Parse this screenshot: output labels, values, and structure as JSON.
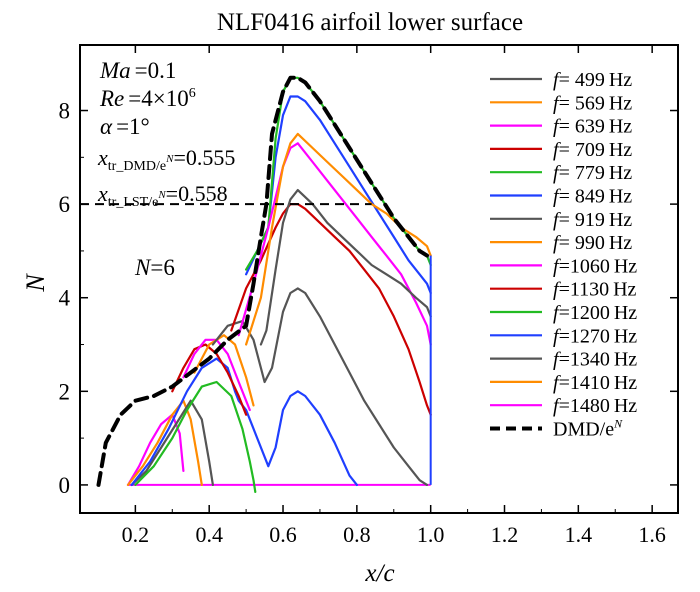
{
  "chart_data": {
    "type": "line",
    "title": "NLF0416 airfoil lower surface",
    "xlabel": "x/c",
    "ylabel": "N",
    "xlim": [
      0.05,
      1.67
    ],
    "ylim": [
      -0.6,
      9.4
    ],
    "xticks": [
      "0.2",
      "0.4",
      "0.6",
      "0.8",
      "1.0",
      "1.2",
      "1.4",
      "1.6"
    ],
    "xtick_values": [
      0.2,
      0.4,
      0.6,
      0.8,
      1.0,
      1.2,
      1.4,
      1.6
    ],
    "yticks": [
      "0",
      "2",
      "4",
      "6",
      "8"
    ],
    "ytick_values": [
      0,
      2,
      4,
      6,
      8
    ],
    "grid": false,
    "legend_position": "top-right",
    "annotations": {
      "ma_label": "Ma",
      "ma_value": "=0.1",
      "re_label": "Re",
      "re_value": "=4×10",
      "re_exp": "6",
      "alpha_label": "α",
      "alpha_value": "=1°",
      "xtr_dmd_sym": "x",
      "xtr_dmd_sub": "tr_DMD/e",
      "xtr_dmd_subexp": "N",
      "xtr_dmd_value": "=0.555",
      "xtr_lst_sym": "x",
      "xtr_lst_sub": "tr_LST/e",
      "xtr_lst_subexp": "N",
      "xtr_lst_value": "=0.558",
      "n_label": "N",
      "n_value": "=6",
      "threshold_value": 6
    },
    "series": [
      {
        "name": "f= 499 Hz",
        "f_label": "f",
        "f_value": "= 499",
        "unit": "Hz",
        "color": "#555555",
        "x": [
          0.54,
          0.555,
          0.58,
          0.6,
          0.62,
          0.64,
          0.68,
          0.72,
          0.76,
          0.8,
          0.84,
          0.88,
          0.92,
          0.96,
          0.99,
          1.0
        ],
        "y": [
          3.0,
          3.3,
          4.6,
          5.6,
          6.1,
          6.3,
          6.0,
          5.6,
          5.3,
          5.0,
          4.7,
          4.5,
          4.3,
          4.0,
          3.8,
          3.6
        ]
      },
      {
        "name": "f= 569 Hz",
        "f_label": "f",
        "f_value": "= 569",
        "unit": "Hz",
        "color": "#FF8C00",
        "x": [
          0.5,
          0.54,
          0.57,
          0.6,
          0.62,
          0.64,
          0.68,
          0.72,
          0.76,
          0.8,
          0.84,
          0.88,
          0.92,
          0.96,
          0.99,
          1.0
        ],
        "y": [
          3.0,
          4.0,
          5.5,
          6.8,
          7.3,
          7.5,
          7.2,
          6.9,
          6.6,
          6.3,
          6.0,
          5.8,
          5.5,
          5.3,
          5.1,
          4.9
        ]
      },
      {
        "name": "f= 639 Hz",
        "f_label": "f",
        "f_value": "= 639",
        "unit": "Hz",
        "color": "#FF00FF",
        "x": [
          0.48,
          0.52,
          0.56,
          0.6,
          0.62,
          0.64,
          0.68,
          0.72,
          0.76,
          0.8,
          0.84,
          0.88,
          0.92,
          0.96,
          0.99,
          1.0
        ],
        "y": [
          3.2,
          4.3,
          5.5,
          6.8,
          7.2,
          7.3,
          6.9,
          6.5,
          6.1,
          5.7,
          5.3,
          4.9,
          4.5,
          3.9,
          3.4,
          3.0
        ]
      },
      {
        "name": "f= 709 Hz",
        "f_label": "f",
        "f_value": "= 709",
        "unit": "Hz",
        "color": "#CC0000",
        "x": [
          0.46,
          0.5,
          0.54,
          0.58,
          0.6,
          0.62,
          0.64,
          0.66,
          0.7,
          0.74,
          0.78,
          0.82,
          0.86,
          0.9,
          0.94,
          0.97,
          0.99,
          1.0
        ],
        "y": [
          3.3,
          4.2,
          4.8,
          5.5,
          5.8,
          6.0,
          6.0,
          5.9,
          5.6,
          5.3,
          5.0,
          4.6,
          4.2,
          3.6,
          2.9,
          2.2,
          1.7,
          1.5
        ]
      },
      {
        "name": "f= 779 Hz",
        "f_label": "f",
        "f_value": "= 779",
        "unit": "Hz",
        "color": "#22BB22",
        "x": [
          0.5,
          0.53,
          0.56,
          0.58,
          0.6,
          0.62,
          0.64,
          0.66,
          0.7,
          0.74,
          0.78,
          0.82,
          0.86,
          0.9,
          0.94,
          0.97,
          0.99,
          1.0
        ],
        "y": [
          4.6,
          5.0,
          5.5,
          7.4,
          8.4,
          8.7,
          8.7,
          8.6,
          8.2,
          7.7,
          7.2,
          6.7,
          6.2,
          5.7,
          5.3,
          5.0,
          4.9,
          4.7
        ]
      },
      {
        "name": "f= 849 Hz",
        "f_label": "f",
        "f_value": "= 849",
        "unit": "Hz",
        "color": "#1F3FFF",
        "x": [
          0.5,
          0.53,
          0.56,
          0.58,
          0.6,
          0.62,
          0.64,
          0.66,
          0.7,
          0.74,
          0.78,
          0.82,
          0.86,
          0.9,
          0.94,
          0.97,
          0.99,
          1.0
        ],
        "y": [
          4.5,
          5.0,
          5.5,
          7.0,
          7.9,
          8.3,
          8.3,
          8.2,
          7.8,
          7.3,
          6.8,
          6.3,
          5.8,
          5.3,
          4.8,
          4.5,
          4.3,
          4.1
        ]
      },
      {
        "name": "f= 919 Hz",
        "f_label": "f",
        "f_value": "= 919",
        "unit": "Hz",
        "color": "#555555",
        "x": [
          0.41,
          0.45,
          0.49,
          0.52,
          0.55,
          0.57,
          0.6,
          0.62,
          0.64,
          0.66,
          0.7,
          0.74,
          0.78,
          0.82,
          0.86,
          0.9,
          0.94,
          0.97,
          0.99
        ],
        "y": [
          3.0,
          3.4,
          3.5,
          3.1,
          2.2,
          2.5,
          3.7,
          4.1,
          4.2,
          4.1,
          3.6,
          3.0,
          2.4,
          1.8,
          1.3,
          0.8,
          0.4,
          0.1,
          0.0
        ]
      },
      {
        "name": "f= 990 Hz",
        "f_label": "f",
        "f_value": "= 990",
        "unit": "Hz",
        "color": "#FF8C00",
        "x": [
          0.36,
          0.4,
          0.44,
          0.47,
          0.5,
          0.52
        ],
        "y": [
          2.4,
          3.0,
          3.2,
          3.0,
          2.3,
          1.7
        ]
      },
      {
        "name": "f=1060 Hz",
        "f_label": "f",
        "f_value": "=1060",
        "unit": "Hz",
        "color": "#FF00FF",
        "x": [
          0.33,
          0.36,
          0.39,
          0.42,
          0.45,
          0.48,
          0.5,
          0.51
        ],
        "y": [
          2.3,
          2.8,
          3.1,
          3.1,
          2.8,
          2.2,
          1.8,
          1.6
        ]
      },
      {
        "name": "f=1130 Hz",
        "f_label": "f",
        "f_value": "=1130",
        "unit": "Hz",
        "color": "#CC0000",
        "x": [
          0.3,
          0.33,
          0.36,
          0.39,
          0.42,
          0.45,
          0.48,
          0.5
        ],
        "y": [
          2.0,
          2.5,
          2.9,
          3.0,
          2.8,
          2.4,
          1.9,
          1.5
        ]
      },
      {
        "name": "f=1200 Hz",
        "f_label": "f",
        "f_value": "=1200",
        "unit": "Hz",
        "color": "#22BB22",
        "x": [
          0.2,
          0.25,
          0.3,
          0.34,
          0.38,
          0.42,
          0.46,
          0.49,
          0.51,
          0.52,
          0.525
        ],
        "y": [
          0.0,
          0.4,
          1.0,
          1.6,
          2.1,
          2.2,
          1.9,
          1.2,
          0.5,
          0.1,
          -0.15
        ]
      },
      {
        "name": "f=1270 Hz",
        "f_label": "f",
        "f_value": "=1270",
        "unit": "Hz",
        "color": "#1F3FFF",
        "x": [
          0.19,
          0.24,
          0.29,
          0.34,
          0.38,
          0.42,
          0.45,
          0.47,
          0.48,
          0.5,
          0.53,
          0.56,
          0.58,
          0.6,
          0.62,
          0.64,
          0.66,
          0.7,
          0.74,
          0.78,
          0.8
        ],
        "y": [
          0.0,
          0.5,
          1.2,
          2.0,
          2.5,
          2.7,
          2.5,
          2.0,
          1.8,
          1.6,
          1.0,
          0.4,
          0.8,
          1.6,
          1.9,
          2.0,
          1.9,
          1.5,
          0.9,
          0.2,
          0.0
        ]
      },
      {
        "name": "f=1340 Hz",
        "f_label": "f",
        "f_value": "=1340",
        "unit": "Hz",
        "color": "#555555",
        "x": [
          0.19,
          0.23,
          0.27,
          0.31,
          0.35,
          0.38,
          0.4,
          0.41
        ],
        "y": [
          0.0,
          0.3,
          0.8,
          1.3,
          1.8,
          1.4,
          0.5,
          0.0
        ]
      },
      {
        "name": "f=1410 Hz",
        "f_label": "f",
        "f_value": "=1410",
        "unit": "Hz",
        "color": "#FF8C00",
        "x": [
          0.18,
          0.22,
          0.26,
          0.3,
          0.33,
          0.35,
          0.37,
          0.38
        ],
        "y": [
          0.0,
          0.4,
          0.9,
          1.5,
          1.8,
          1.4,
          0.5,
          0.0
        ]
      },
      {
        "name": "f=1480 Hz",
        "f_label": "f",
        "f_value": "=1480",
        "unit": "Hz",
        "color": "#FF00FF",
        "x": [
          0.18,
          0.21,
          0.24,
          0.27,
          0.3,
          0.32,
          0.33
        ],
        "y": [
          0.0,
          0.4,
          0.9,
          1.3,
          1.5,
          1.1,
          0.3
        ]
      },
      {
        "name": "DMD/e^N",
        "f_label": "DMD/e",
        "f_value": "",
        "unit": "N",
        "color": "#000000",
        "dashed": true,
        "x": [
          0.1,
          0.12,
          0.14,
          0.16,
          0.2,
          0.25,
          0.3,
          0.35,
          0.4,
          0.45,
          0.5,
          0.52,
          0.54,
          0.555,
          0.57,
          0.6,
          0.62,
          0.64,
          0.66,
          0.7,
          0.74,
          0.78,
          0.82,
          0.86,
          0.9,
          0.94,
          0.97,
          0.99
        ],
        "y": [
          0.0,
          0.9,
          1.2,
          1.5,
          1.8,
          1.9,
          2.1,
          2.4,
          2.7,
          3.1,
          3.4,
          4.3,
          5.3,
          6.0,
          7.5,
          8.4,
          8.7,
          8.7,
          8.6,
          8.2,
          7.7,
          7.2,
          6.7,
          6.2,
          5.7,
          5.3,
          5.0,
          4.9
        ]
      }
    ]
  }
}
